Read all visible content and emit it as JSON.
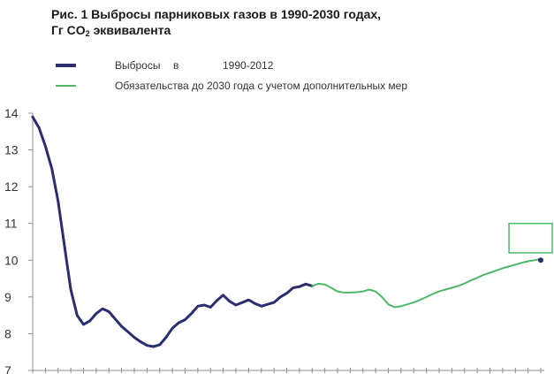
{
  "title": {
    "line1": "Рис. 1 Выбросы парниковых газов в 1990-2030 годах,",
    "line2_prefix": "Гг CO",
    "line2_sub": "2",
    "line2_suffix": " эквивалента"
  },
  "chart_data": {
    "type": "line",
    "title": "Рис. 1 Выбросы парниковых газов в 1990-2030 годах, Гг CO2 эквивалента",
    "xlabel": "",
    "ylabel": "",
    "xlim": [
      1990,
      2030
    ],
    "ylim": [
      7,
      14
    ],
    "yticks": [
      "7",
      "8",
      "9",
      "10",
      "11",
      "12",
      "13",
      "14"
    ],
    "legend_position": "top-left",
    "legend": [
      {
        "label_parts": [
          "Выбросы",
          "в",
          "1990-2012"
        ],
        "color": "#2a2d6e"
      },
      {
        "label_parts": [
          "Обязательства до 2030 года с учетом дополнительных мер"
        ],
        "color": "#4db86a"
      }
    ],
    "series": [
      {
        "name": "Выбросы в 1990-2012",
        "color": "#2a2d6e",
        "x": [
          1990.0,
          1990.5,
          1991.0,
          1991.5,
          1992.0,
          1992.5,
          1993.0,
          1993.5,
          1994.0,
          1994.5,
          1995.0,
          1995.5,
          1996.0,
          1996.5,
          1997.0,
          1997.5,
          1998.0,
          1998.5,
          1999.0,
          1999.5,
          2000.0,
          2000.5,
          2001.0,
          2001.5,
          2002.0,
          2002.5,
          2003.0,
          2003.5,
          2004.0,
          2004.5,
          2005.0,
          2005.5,
          2006.0,
          2006.5,
          2007.0,
          2007.5,
          2008.0,
          2008.5,
          2009.0,
          2009.5,
          2010.0,
          2010.5,
          2011.0,
          2011.5,
          2012.0
        ],
        "values": [
          13.9,
          13.6,
          13.1,
          12.5,
          11.6,
          10.4,
          9.2,
          8.5,
          8.25,
          8.35,
          8.55,
          8.68,
          8.6,
          8.4,
          8.2,
          8.05,
          7.9,
          7.78,
          7.68,
          7.65,
          7.7,
          7.9,
          8.15,
          8.3,
          8.38,
          8.55,
          8.75,
          8.78,
          8.72,
          8.9,
          9.05,
          8.88,
          8.78,
          8.85,
          8.92,
          8.82,
          8.75,
          8.8,
          8.85,
          9.0,
          9.1,
          9.25,
          9.28,
          9.35,
          9.3
        ]
      },
      {
        "name": "Обязательства до 2030 года с учетом дополнительных мер",
        "color": "#4db86a",
        "x": [
          2012.0,
          2012.5,
          2013.0,
          2013.5,
          2014.0,
          2014.5,
          2015.0,
          2015.5,
          2016.0,
          2016.5,
          2017.0,
          2017.5,
          2018.0,
          2018.5,
          2019.0,
          2019.5,
          2020.0,
          2020.5,
          2021.0,
          2021.5,
          2022.0,
          2022.5,
          2023.0,
          2023.5,
          2024.0,
          2024.5,
          2025.0,
          2025.5,
          2026.0,
          2026.5,
          2027.0,
          2027.5,
          2028.0,
          2028.5,
          2029.0,
          2029.5,
          2030.0
        ],
        "values": [
          9.3,
          9.36,
          9.34,
          9.25,
          9.15,
          9.12,
          9.12,
          9.13,
          9.15,
          9.2,
          9.15,
          9.0,
          8.8,
          8.72,
          8.75,
          8.8,
          8.85,
          8.92,
          9.0,
          9.08,
          9.15,
          9.2,
          9.25,
          9.3,
          9.37,
          9.45,
          9.52,
          9.6,
          9.66,
          9.72,
          9.78,
          9.83,
          9.88,
          9.93,
          9.97,
          10.0,
          10.03
        ]
      }
    ],
    "target_box": {
      "x": [
        2027.5,
        2031.5
      ],
      "y": [
        10.2,
        11.0
      ],
      "color": "#4db86a"
    },
    "endpoint_marker": {
      "x": 2030,
      "y": 10.0,
      "color": "#2a2d6e"
    }
  }
}
